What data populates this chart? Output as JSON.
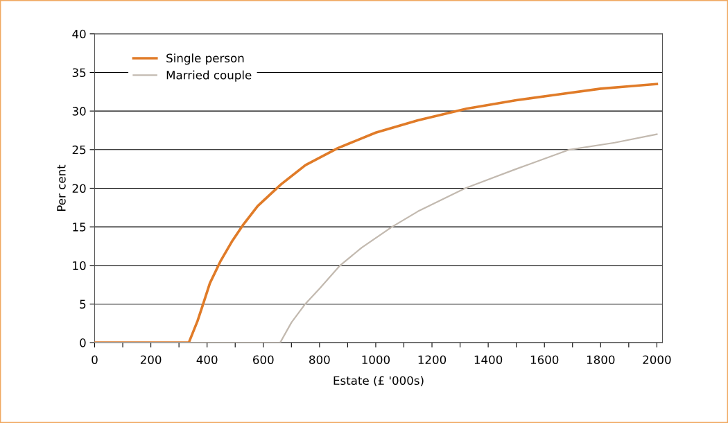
{
  "chart_data": {
    "type": "line",
    "xlabel": "Estate (£ '000s)",
    "ylabel": "Per cent",
    "xlim": [
      0,
      2020
    ],
    "ylim": [
      0,
      40
    ],
    "xticks": [
      0,
      {
        "value": 100,
        "label": null
      },
      200,
      {
        "value": 300,
        "label": null
      },
      400,
      {
        "value": 500,
        "label": null
      },
      600,
      {
        "value": 700,
        "label": null
      },
      800,
      {
        "value": 900,
        "label": null
      },
      1000,
      {
        "value": 1100,
        "label": null
      },
      1200,
      {
        "value": 1300,
        "label": null
      },
      1400,
      {
        "value": 1500,
        "label": null
      },
      1600,
      {
        "value": 1700,
        "label": null
      },
      1800,
      {
        "value": 1900,
        "label": null
      },
      2000
    ],
    "yticks": [
      0,
      5,
      10,
      15,
      20,
      25,
      30,
      35,
      40
    ],
    "grid": "y",
    "legend": "top left",
    "marker": "none",
    "line_style": "solid",
    "series": [
      {
        "name": "Single person",
        "color": "#e07b28",
        "x": [
          0,
          100,
          200,
          300,
          335,
          366,
          386,
          410,
          447,
          490,
          527,
          580,
          663,
          750,
          865,
          1000,
          1150,
          1323,
          1500,
          1639,
          1800,
          1900,
          2000
        ],
        "values": [
          0,
          0,
          0,
          0,
          0,
          2.8,
          5,
          7.7,
          10.5,
          13.2,
          15.2,
          17.7,
          20.5,
          23,
          25.2,
          27.2,
          28.8,
          30.3,
          31.4,
          32.1,
          32.9,
          33.2,
          33.5
        ]
      },
      {
        "name": "Married couple",
        "color": "#c2b9af",
        "x": [
          0,
          200,
          400,
          600,
          660,
          700,
          749,
          800,
          873,
          950,
          1058,
          1150,
          1318,
          1500,
          1689,
          1850,
          2000
        ],
        "values": [
          0,
          0,
          0,
          0,
          0,
          2.6,
          5,
          7,
          10,
          12.3,
          15,
          17,
          20,
          22.5,
          25,
          25.9,
          27
        ]
      }
    ]
  }
}
